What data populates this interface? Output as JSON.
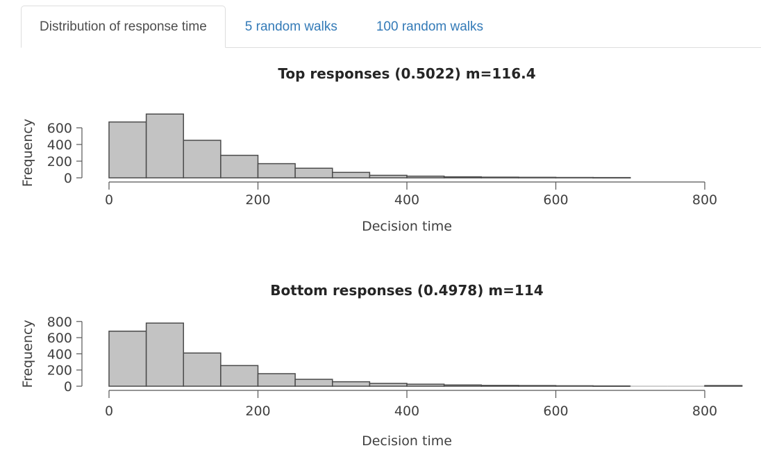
{
  "tabs": {
    "items": [
      {
        "label": "Distribution of response time",
        "active": true
      },
      {
        "label": "5 random walks",
        "active": false
      },
      {
        "label": "100 random walks",
        "active": false
      }
    ]
  },
  "colors": {
    "link_blue": "#337ab7",
    "tab_border": "#dddddd",
    "tab_active_text": "#4d4d4d",
    "bar_fill": "#c3c3c3",
    "bar_stroke": "#4a4a4a",
    "axis": "#555555",
    "tick_text": "#404040",
    "title_text": "#252525",
    "empty_bin_line": "#bfbfbf"
  },
  "chart_data": [
    {
      "type": "bar",
      "kind": "histogram",
      "title": "Top responses (0.5022) m=116.4",
      "xlabel": "Decision time",
      "ylabel": "Frequency",
      "bin_start": 0,
      "bin_width": 50,
      "values": [
        670,
        765,
        450,
        270,
        170,
        115,
        65,
        30,
        20,
        12,
        8,
        6,
        4,
        3
      ],
      "xticks": [
        0,
        200,
        400,
        600,
        800
      ],
      "yticks": [
        0,
        200,
        400,
        600
      ],
      "xlim": [
        0,
        800
      ],
      "ylim": [
        0,
        780
      ],
      "grid": false,
      "legend": null
    },
    {
      "type": "bar",
      "kind": "histogram",
      "title": "Bottom responses (0.4978) m=114",
      "xlabel": "Decision time",
      "ylabel": "Frequency",
      "bin_start": 0,
      "bin_width": 50,
      "values": [
        680,
        780,
        410,
        255,
        155,
        85,
        55,
        35,
        25,
        15,
        10,
        8,
        5,
        3,
        0,
        0,
        8
      ],
      "xticks": [
        0,
        200,
        400,
        600,
        800
      ],
      "yticks": [
        0,
        200,
        400,
        600,
        800
      ],
      "xlim": [
        0,
        850
      ],
      "ylim": [
        0,
        800
      ],
      "grid": false,
      "legend": null
    }
  ]
}
